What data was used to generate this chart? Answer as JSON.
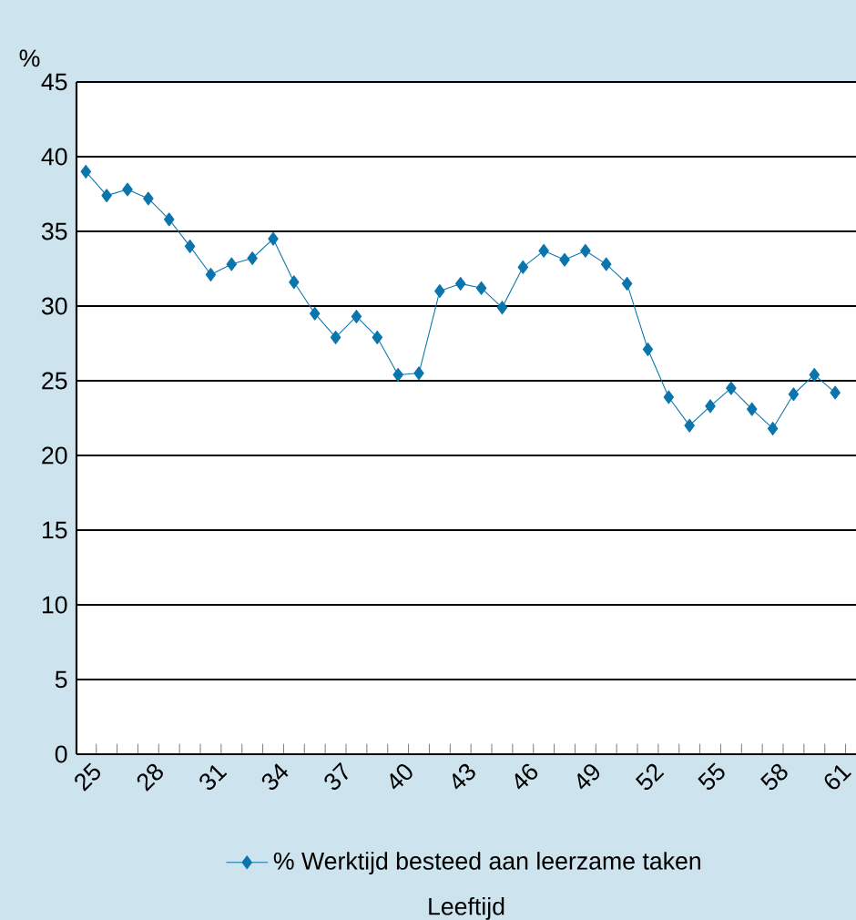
{
  "chart_data": {
    "type": "line",
    "ylabel": "%",
    "xlabel": "Leeftijd",
    "categories": [
      "25",
      null,
      null,
      "28",
      null,
      null,
      "31",
      null,
      null,
      "34",
      null,
      null,
      "37",
      null,
      null,
      "40",
      null,
      null,
      "43",
      null,
      null,
      "46",
      null,
      null,
      "49",
      null,
      null,
      "52",
      null,
      null,
      "55",
      null,
      null,
      "58",
      null,
      null,
      "61"
    ],
    "series": [
      {
        "name": "% Werktijd besteed aan leerzame taken",
        "color": "#0a75ad",
        "values": [
          39.0,
          37.4,
          37.8,
          37.2,
          35.8,
          34.0,
          32.1,
          32.8,
          33.2,
          34.5,
          31.6,
          29.5,
          27.9,
          29.3,
          27.9,
          25.4,
          25.5,
          31.0,
          31.5,
          31.2,
          29.9,
          32.6,
          33.7,
          33.1,
          33.7,
          32.8,
          31.5,
          27.1,
          23.9,
          22.0,
          23.3,
          24.5,
          23.1,
          21.8,
          24.1,
          25.4,
          24.2
        ]
      }
    ],
    "ylim": [
      0,
      45
    ],
    "yticks": [
      0,
      5,
      10,
      15,
      20,
      25,
      30,
      35,
      40,
      45
    ],
    "grid": "y",
    "legend": "bottom",
    "marker": "diamond",
    "line_style": "solid"
  }
}
